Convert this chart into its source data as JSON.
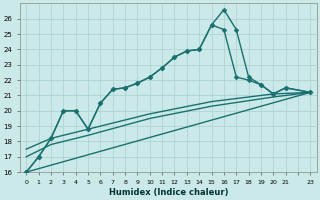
{
  "xlabel": "Humidex (Indice chaleur)",
  "bg_color": "#cce9e9",
  "grid_color": "#aed4d4",
  "line_color": "#1a7070",
  "xlim": [
    -0.5,
    23.5
  ],
  "ylim": [
    16,
    27
  ],
  "yticks": [
    16,
    17,
    18,
    19,
    20,
    21,
    22,
    23,
    24,
    25,
    26
  ],
  "xticks": [
    0,
    1,
    2,
    3,
    4,
    5,
    6,
    7,
    8,
    9,
    10,
    11,
    12,
    13,
    14,
    15,
    16,
    17,
    18,
    19,
    20,
    21,
    22,
    23
  ],
  "x_tick_labels": [
    "0",
    "1",
    "2",
    "3",
    "4",
    "5",
    "6",
    "7",
    "8",
    "9",
    "10",
    "11",
    "12",
    "13",
    "14",
    "15",
    "16",
    "17",
    "18",
    "19",
    "20",
    "21",
    "",
    "23"
  ],
  "series": [
    {
      "x": [
        0,
        1,
        2,
        3,
        4,
        5,
        6,
        7,
        8,
        9,
        10,
        11,
        12,
        13,
        14,
        15,
        16,
        17,
        18,
        19,
        20,
        21,
        23
      ],
      "y": [
        16.0,
        17.0,
        18.2,
        20.0,
        20.0,
        18.8,
        20.5,
        21.4,
        21.5,
        21.8,
        22.2,
        22.8,
        23.5,
        23.9,
        24.0,
        25.6,
        26.6,
        25.3,
        22.2,
        21.7,
        21.1,
        21.5,
        21.2
      ],
      "with_markers": true,
      "markersize": 2.5,
      "linewidth": 1.0
    },
    {
      "x": [
        0,
        1,
        2,
        3,
        4,
        5,
        6,
        7,
        8,
        9,
        10,
        11,
        12,
        13,
        14,
        15,
        16,
        17,
        18,
        19,
        20,
        21,
        23
      ],
      "y": [
        16.0,
        17.0,
        18.2,
        20.0,
        20.0,
        18.8,
        20.5,
        21.4,
        21.5,
        21.8,
        22.2,
        22.8,
        23.5,
        23.9,
        24.0,
        25.6,
        25.3,
        22.2,
        22.0,
        21.7,
        21.1,
        21.5,
        21.2
      ],
      "with_markers": true,
      "markersize": 2.5,
      "linewidth": 1.0
    },
    {
      "x": [
        0,
        23
      ],
      "y": [
        16.0,
        21.2
      ],
      "with_markers": false,
      "linewidth": 1.0
    },
    {
      "x": [
        0,
        2,
        5,
        10,
        15,
        20,
        23
      ],
      "y": [
        17.0,
        17.8,
        18.4,
        19.5,
        20.3,
        20.9,
        21.2
      ],
      "with_markers": false,
      "linewidth": 1.0
    },
    {
      "x": [
        0,
        2,
        5,
        10,
        15,
        20,
        23
      ],
      "y": [
        17.5,
        18.2,
        18.8,
        19.8,
        20.6,
        21.1,
        21.2
      ],
      "with_markers": false,
      "linewidth": 1.0
    }
  ]
}
